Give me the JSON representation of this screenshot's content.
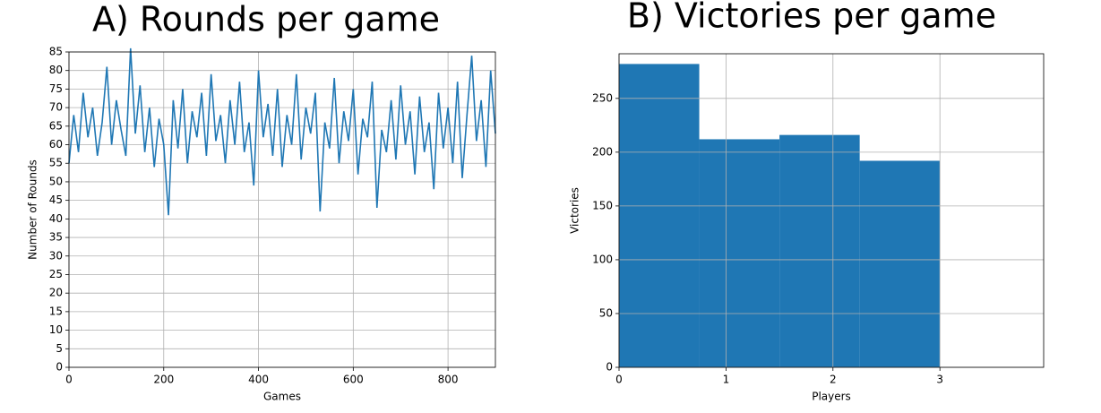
{
  "chart_data": [
    {
      "type": "line",
      "title": "A) Rounds per game",
      "x_label": "Games",
      "y_label": "Number of Rounds",
      "color": "#1f77b4",
      "grid": true,
      "x": [
        0,
        10,
        20,
        30,
        40,
        50,
        60,
        70,
        80,
        90,
        100,
        110,
        120,
        130,
        140,
        150,
        160,
        170,
        180,
        190,
        200,
        210,
        220,
        230,
        240,
        250,
        260,
        270,
        280,
        290,
        300,
        310,
        320,
        330,
        340,
        350,
        360,
        370,
        380,
        390,
        400,
        410,
        420,
        430,
        440,
        450,
        460,
        470,
        480,
        490,
        500,
        510,
        520,
        530,
        540,
        550,
        560,
        570,
        580,
        590,
        600,
        610,
        620,
        630,
        640,
        650,
        660,
        670,
        680,
        690,
        700,
        710,
        720,
        730,
        740,
        750,
        760,
        770,
        780,
        790,
        800,
        810,
        820,
        830,
        840,
        850,
        860,
        870,
        880,
        890,
        900
      ],
      "values": [
        55,
        68,
        58,
        74,
        62,
        70,
        57,
        66,
        81,
        60,
        72,
        64,
        57,
        86,
        63,
        76,
        58,
        70,
        54,
        67,
        60,
        41,
        72,
        59,
        75,
        55,
        69,
        62,
        74,
        57,
        79,
        61,
        68,
        55,
        72,
        60,
        77,
        58,
        66,
        49,
        80,
        62,
        71,
        57,
        75,
        54,
        68,
        60,
        79,
        56,
        70,
        63,
        74,
        42,
        66,
        59,
        78,
        55,
        69,
        61,
        75,
        52,
        67,
        62,
        77,
        43,
        64,
        58,
        72,
        56,
        76,
        60,
        69,
        52,
        73,
        58,
        66,
        48,
        74,
        59,
        70,
        55,
        77,
        51,
        68,
        84,
        61,
        72,
        54,
        80,
        63
      ],
      "xlim": [
        0,
        900
      ],
      "xticks": [
        0,
        200,
        400,
        600,
        800
      ],
      "ylim": [
        0,
        85
      ],
      "yticks": [
        0,
        5,
        10,
        15,
        20,
        25,
        30,
        35,
        40,
        45,
        50,
        55,
        60,
        65,
        70,
        75,
        80,
        85
      ]
    },
    {
      "type": "histogram",
      "title": "B) Victories per game",
      "x_label": "Players",
      "y_label": "Victories",
      "color": "#1f77b4",
      "grid": true,
      "bins": [
        0,
        0.75,
        1.5,
        2.25,
        3
      ],
      "values": [
        282,
        212,
        216,
        192
      ],
      "xlim": [
        0,
        3.97
      ],
      "xticks": [
        0,
        1,
        2,
        3
      ],
      "ylim": [
        0,
        291.5
      ],
      "yticks": [
        0,
        50,
        100,
        150,
        200,
        250
      ]
    }
  ]
}
